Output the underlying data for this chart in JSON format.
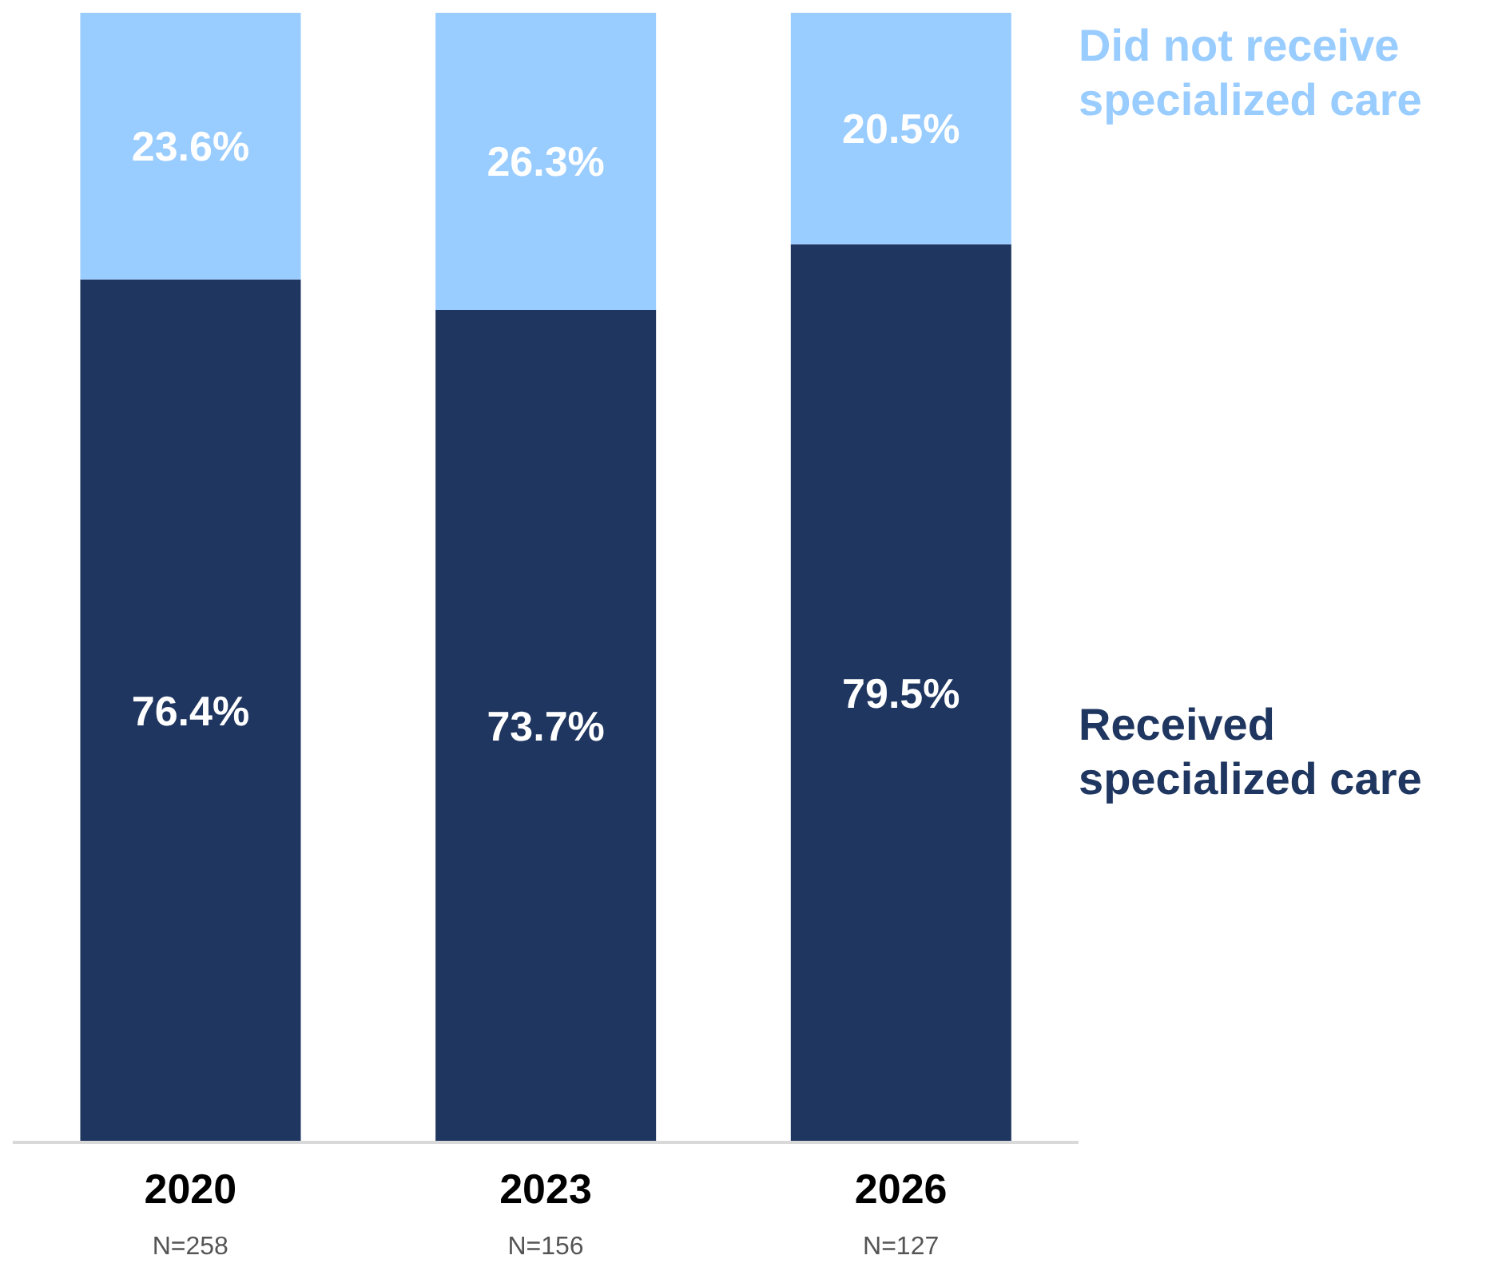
{
  "chart_data": {
    "type": "bar",
    "stacked": true,
    "categories": [
      "2020",
      "2023",
      "2026"
    ],
    "series": [
      {
        "name": "Received specialized care",
        "color": "#1f3660",
        "values": [
          76.4,
          73.7,
          79.5
        ],
        "value_labels": [
          "76.4%",
          "73.7%",
          "79.5%"
        ]
      },
      {
        "name": "Did not receive specialized care",
        "color": "#99ccff",
        "values": [
          23.6,
          26.3,
          20.5
        ],
        "value_labels": [
          "23.6%",
          "26.3%",
          "20.5%"
        ]
      }
    ],
    "annotations": [
      "N=258",
      "N=156",
      "N=127"
    ],
    "legend": "right"
  }
}
